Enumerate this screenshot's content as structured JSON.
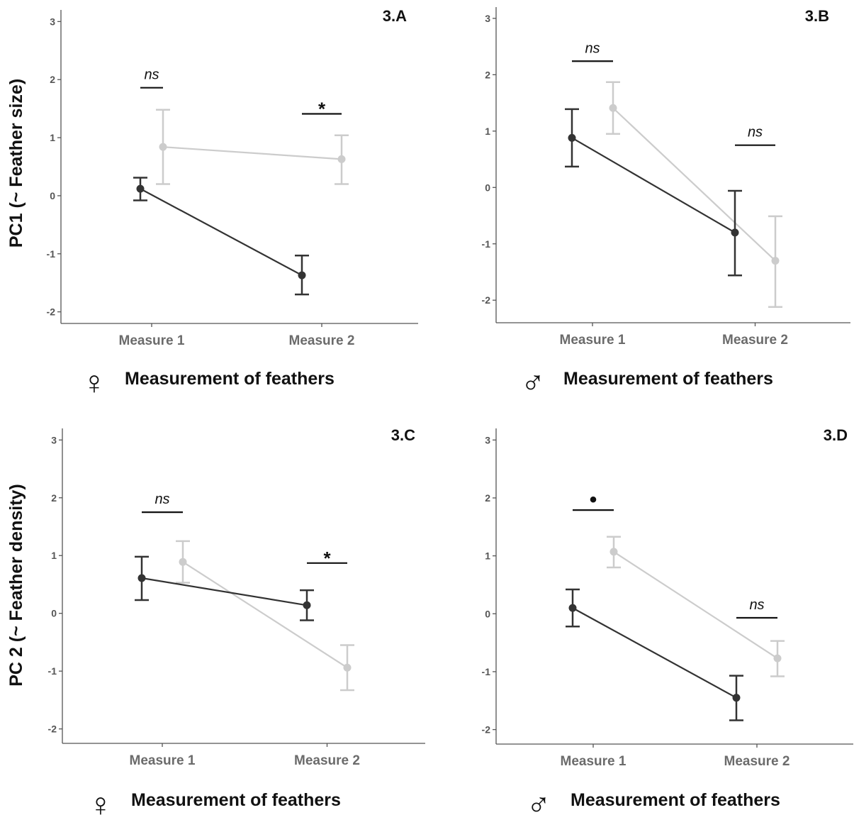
{
  "figure": {
    "ylabel_top": "PC1 (~ Feather size)",
    "ylabel_bottom": "PC 2 (~ Feather density)"
  },
  "colors": {
    "dark": "#333333",
    "light": "#cccccc",
    "axis": "#555555"
  },
  "chart_data": [
    {
      "type": "line",
      "panel_label": "3.A",
      "sex_symbol": "♀",
      "sex_icon": "female-symbol-icon",
      "xlabel": "Measurement of feathers",
      "categories": [
        "Measure 1",
        "Measure 2"
      ],
      "ylim": [
        -2.2,
        3.2
      ],
      "yticks": [
        -2,
        -1,
        0,
        1,
        2,
        3
      ],
      "grid": false,
      "series": [
        {
          "color": "dark",
          "values": [
            0.12,
            -1.37
          ],
          "lower": [
            -0.08,
            -1.7
          ],
          "upper": [
            0.31,
            -1.03
          ]
        },
        {
          "color": "light",
          "values": [
            0.84,
            0.63
          ],
          "lower": [
            0.2,
            0.2
          ],
          "upper": [
            1.48,
            1.04
          ]
        }
      ],
      "significance": [
        "ns",
        "*"
      ],
      "sig_height": [
        1.86,
        1.41
      ]
    },
    {
      "type": "line",
      "panel_label": "3.B",
      "sex_symbol": "♂",
      "sex_icon": "male-symbol-icon",
      "xlabel": "Measurement of feathers",
      "categories": [
        "Measure 1",
        "Measure 2"
      ],
      "ylim": [
        -2.4,
        3.2
      ],
      "yticks": [
        -2,
        -1,
        0,
        1,
        2,
        3
      ],
      "grid": false,
      "series": [
        {
          "color": "dark",
          "values": [
            0.88,
            -0.8
          ],
          "lower": [
            0.37,
            -1.56
          ],
          "upper": [
            1.39,
            -0.06
          ]
        },
        {
          "color": "light",
          "values": [
            1.41,
            -1.3
          ],
          "lower": [
            0.95,
            -2.12
          ],
          "upper": [
            1.87,
            -0.51
          ]
        }
      ],
      "significance": [
        "ns",
        "ns"
      ],
      "sig_height": [
        2.24,
        0.75
      ]
    },
    {
      "type": "line",
      "panel_label": "3.C",
      "sex_symbol": "♀",
      "sex_icon": "female-symbol-icon",
      "xlabel": "Measurement of feathers",
      "categories": [
        "Measure 1",
        "Measure 2"
      ],
      "ylim": [
        -2.25,
        3.2
      ],
      "yticks": [
        -2,
        -1,
        0,
        1,
        2,
        3
      ],
      "grid": false,
      "series": [
        {
          "color": "dark",
          "values": [
            0.61,
            0.14
          ],
          "lower": [
            0.23,
            -0.12
          ],
          "upper": [
            0.98,
            0.4
          ]
        },
        {
          "color": "light",
          "values": [
            0.89,
            -0.94
          ],
          "lower": [
            0.53,
            -1.33
          ],
          "upper": [
            1.25,
            -0.55
          ]
        }
      ],
      "significance": [
        "ns",
        "*"
      ],
      "sig_height": [
        1.75,
        0.87
      ]
    },
    {
      "type": "line",
      "panel_label": "3.D",
      "sex_symbol": "♂",
      "sex_icon": "male-symbol-icon",
      "xlabel": "Measurement of feathers",
      "categories": [
        "Measure 1",
        "Measure 2"
      ],
      "ylim": [
        -2.25,
        3.2
      ],
      "yticks": [
        -2,
        -1,
        0,
        1,
        2,
        3
      ],
      "grid": false,
      "series": [
        {
          "color": "dark",
          "values": [
            0.1,
            -1.45
          ],
          "lower": [
            -0.22,
            -1.84
          ],
          "upper": [
            0.42,
            -1.07
          ]
        },
        {
          "color": "light",
          "values": [
            1.07,
            -0.77
          ],
          "lower": [
            0.8,
            -1.08
          ],
          "upper": [
            1.33,
            -0.47
          ]
        }
      ],
      "significance": [
        "•",
        "ns"
      ],
      "sig_height": [
        1.79,
        -0.07
      ]
    }
  ]
}
